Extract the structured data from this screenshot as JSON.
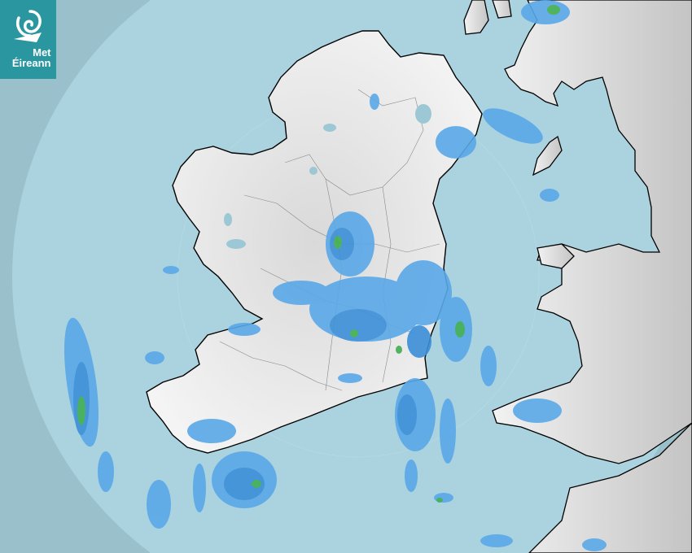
{
  "logo": {
    "line1": "Met",
    "line2": "Éireann",
    "color": "#2a969f"
  },
  "map": {
    "type": "weather-radar",
    "colors": {
      "outside_range": "#9ac0cb",
      "sea": "#aad3df",
      "land": "#ececec",
      "rain_light": "#5aa8e8",
      "rain_moderate": "#3c8fd8",
      "rain_heavy": "#3fae52"
    }
  }
}
